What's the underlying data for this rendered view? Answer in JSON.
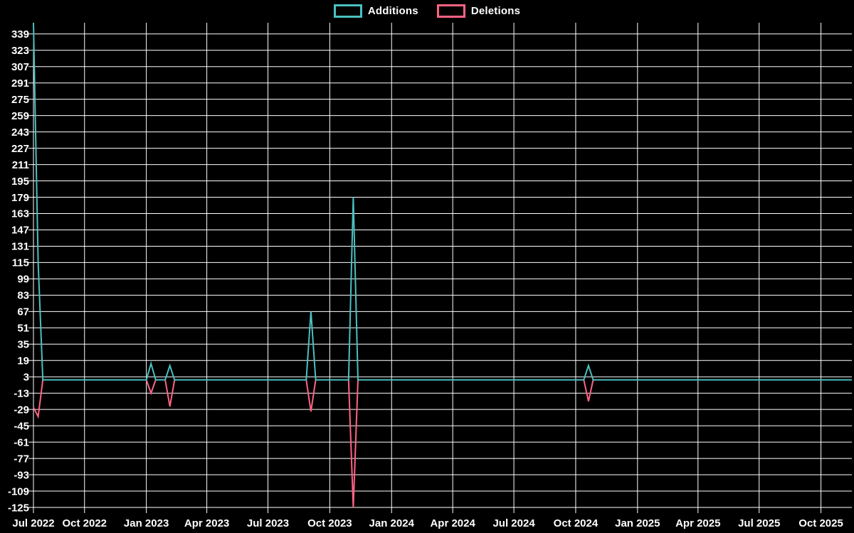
{
  "legend": {
    "items": [
      {
        "label": "Additions",
        "color": "#4bc0c0"
      },
      {
        "label": "Deletions",
        "color": "#ff6384"
      }
    ]
  },
  "chart_data": {
    "type": "line",
    "title": "",
    "xlabel": "",
    "ylabel": "",
    "background_color": "#000000",
    "grid_color": "#ffffff",
    "axis_color": "#ffffff",
    "text_color": "#ffffff",
    "grid": true,
    "legend_position": "top-center",
    "ylim": [
      -125,
      350
    ],
    "y_tick_step": 16,
    "y_ticks": [
      339,
      323,
      307,
      291,
      275,
      259,
      243,
      227,
      211,
      195,
      179,
      163,
      147,
      131,
      115,
      99,
      83,
      67,
      51,
      35,
      19,
      3,
      -13,
      -29,
      -45,
      -61,
      -77,
      -93,
      -109,
      -125
    ],
    "x_domain": [
      "2022-07-17",
      "2025-11-16"
    ],
    "x_ticks": [
      {
        "date": "2022-07-01",
        "label": "Jul 2022"
      },
      {
        "date": "2022-10-01",
        "label": "Oct 2022"
      },
      {
        "date": "2023-01-01",
        "label": "Jan 2023"
      },
      {
        "date": "2023-04-01",
        "label": "Apr 2023"
      },
      {
        "date": "2023-07-01",
        "label": "Jul 2023"
      },
      {
        "date": "2023-10-01",
        "label": "Oct 2023"
      },
      {
        "date": "2024-01-01",
        "label": "Jan 2024"
      },
      {
        "date": "2024-04-01",
        "label": "Apr 2024"
      },
      {
        "date": "2024-07-01",
        "label": "Jul 2024"
      },
      {
        "date": "2024-10-01",
        "label": "Oct 2024"
      },
      {
        "date": "2025-01-01",
        "label": "Jan 2025"
      },
      {
        "date": "2025-04-01",
        "label": "Apr 2025"
      },
      {
        "date": "2025-07-01",
        "label": "Jul 2025"
      },
      {
        "date": "2025-10-01",
        "label": "Oct 2025"
      }
    ],
    "series": [
      {
        "name": "Additions",
        "color": "#4bc0c0",
        "baseline": 0,
        "point_interval_days": 7,
        "events": [
          {
            "date": "2022-07-17",
            "value": 350
          },
          {
            "date": "2022-07-24",
            "value": 115
          },
          {
            "date": "2023-01-08",
            "value": 16
          },
          {
            "date": "2023-02-05",
            "value": 14
          },
          {
            "date": "2023-09-03",
            "value": 67
          },
          {
            "date": "2023-11-05",
            "value": 179
          },
          {
            "date": "2024-10-20",
            "value": 14
          }
        ]
      },
      {
        "name": "Deletions",
        "color": "#ff6384",
        "baseline": 0,
        "point_interval_days": 7,
        "events": [
          {
            "date": "2022-07-17",
            "value": -27
          },
          {
            "date": "2022-07-24",
            "value": -36
          },
          {
            "date": "2023-01-08",
            "value": -13
          },
          {
            "date": "2023-02-05",
            "value": -26
          },
          {
            "date": "2023-09-03",
            "value": -31
          },
          {
            "date": "2023-11-05",
            "value": -125
          },
          {
            "date": "2024-10-20",
            "value": -21
          }
        ]
      }
    ]
  }
}
